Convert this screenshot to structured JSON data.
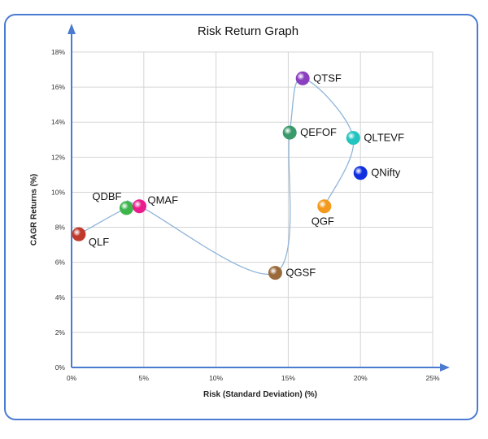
{
  "chart_data": {
    "type": "scatter",
    "title": "Risk Return Graph",
    "xlabel": "Risk  (Standard Deviation) (%)",
    "ylabel": "CAGR Returns (%)",
    "xlim": [
      0,
      25
    ],
    "ylim": [
      0,
      18
    ],
    "x_ticks": [
      0,
      5,
      10,
      15,
      20,
      25
    ],
    "x_tick_labels": [
      "0%",
      "5%",
      "10%",
      "15%",
      "20%",
      "25%"
    ],
    "y_ticks": [
      0,
      2,
      4,
      6,
      8,
      10,
      12,
      14,
      16,
      18
    ],
    "y_tick_labels": [
      "0%",
      "2%",
      "4%",
      "6%",
      "8%",
      "10%",
      "12%",
      "14%",
      "16%",
      "18%"
    ],
    "grid": true,
    "legend": "none",
    "connector_line_color": "#8fb4d9",
    "connected_order": [
      "QLF",
      "QDBF",
      "QMAF",
      "QGSF",
      "QEFOF",
      "QTSF",
      "QLTEVF",
      "QGF"
    ],
    "points": [
      {
        "label": "QLF",
        "x": 0.5,
        "y": 7.6,
        "color": "#c0392b",
        "label_pos": "below-right"
      },
      {
        "label": "QDBF",
        "x": 3.8,
        "y": 9.1,
        "color": "#3cb54a",
        "label_pos": "above-left"
      },
      {
        "label": "QMAF",
        "x": 4.7,
        "y": 9.2,
        "color": "#e91e8c",
        "label_pos": "above-right"
      },
      {
        "label": "QGSF",
        "x": 14.1,
        "y": 5.4,
        "color": "#9a6a3a",
        "label_pos": "right"
      },
      {
        "label": "QEFOF",
        "x": 15.1,
        "y": 13.4,
        "color": "#3a9a6a",
        "label_pos": "right"
      },
      {
        "label": "QTSF",
        "x": 16.0,
        "y": 16.5,
        "color": "#8a3fbf",
        "label_pos": "right"
      },
      {
        "label": "QLTEVF",
        "x": 19.5,
        "y": 13.1,
        "color": "#22c4c0",
        "label_pos": "right"
      },
      {
        "label": "QNifty",
        "x": 20.0,
        "y": 11.1,
        "color": "#1030e0",
        "label_pos": "right"
      },
      {
        "label": "QGF",
        "x": 17.5,
        "y": 9.2,
        "color": "#f39a1c",
        "label_pos": "below"
      }
    ]
  }
}
